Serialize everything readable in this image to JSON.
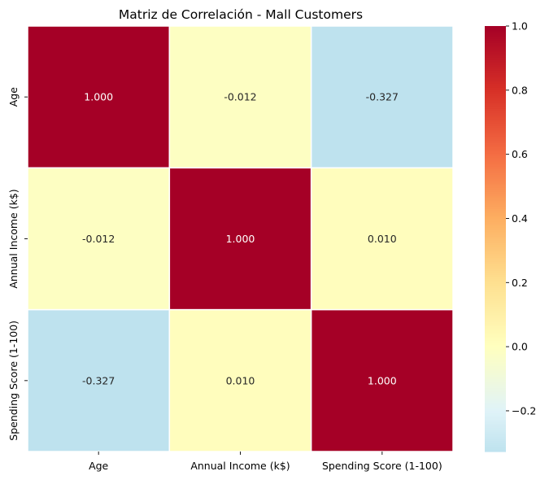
{
  "chart_data": {
    "type": "heatmap",
    "title": "Matriz de Correlación - Mall Customers",
    "x_categories": [
      "Age",
      "Annual Income (k$)",
      "Spending Score (1-100)"
    ],
    "y_categories": [
      "Age",
      "Annual Income (k$)",
      "Spending Score (1-100)"
    ],
    "values": [
      [
        1.0,
        -0.012,
        -0.327
      ],
      [
        -0.012,
        1.0,
        0.01
      ],
      [
        -0.327,
        0.01,
        1.0
      ]
    ],
    "annotations": [
      [
        "1.000",
        "-0.012",
        "-0.327"
      ],
      [
        "-0.012",
        "1.000",
        "0.010"
      ],
      [
        "-0.327",
        "0.010",
        "1.000"
      ]
    ],
    "colormap": "RdYlBu_r",
    "center": 0,
    "vmin": -0.327,
    "vmax": 1.0,
    "colorbar": {
      "ticks": [
        1.0,
        0.8,
        0.6,
        0.4,
        0.2,
        0.0,
        -0.2
      ],
      "tick_labels": [
        "1.0",
        "0.8",
        "0.6",
        "0.4",
        "0.2",
        "0.0",
        "−0.2"
      ]
    },
    "colors": {
      "high": "#a50026",
      "mid": "#ffffbf",
      "low": "#c3e3ee",
      "grid": "#ffffff"
    }
  }
}
